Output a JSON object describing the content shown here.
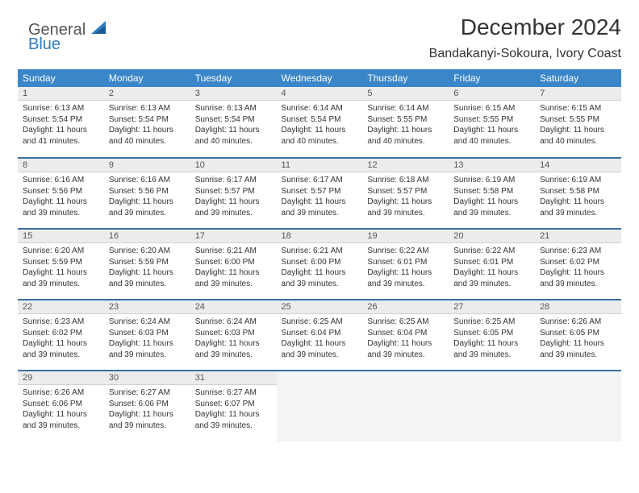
{
  "logo": {
    "text1": "General",
    "text2": "Blue",
    "icon_color": "#2f7cc0"
  },
  "header": {
    "month_title": "December 2024",
    "location": "Bandakanyi-Sokoura, Ivory Coast"
  },
  "style": {
    "header_bg": "#3a86c8",
    "header_fg": "#ffffff",
    "row_divider": "#3a6ea5",
    "daynum_bg": "#ececec",
    "text_color": "#333333",
    "empty_bg": "#f4f4f4"
  },
  "calendar": {
    "day_headers": [
      "Sunday",
      "Monday",
      "Tuesday",
      "Wednesday",
      "Thursday",
      "Friday",
      "Saturday"
    ],
    "weeks": [
      [
        {
          "day": "1",
          "sunrise": "Sunrise: 6:13 AM",
          "sunset": "Sunset: 5:54 PM",
          "daylight": "Daylight: 11 hours and 41 minutes."
        },
        {
          "day": "2",
          "sunrise": "Sunrise: 6:13 AM",
          "sunset": "Sunset: 5:54 PM",
          "daylight": "Daylight: 11 hours and 40 minutes."
        },
        {
          "day": "3",
          "sunrise": "Sunrise: 6:13 AM",
          "sunset": "Sunset: 5:54 PM",
          "daylight": "Daylight: 11 hours and 40 minutes."
        },
        {
          "day": "4",
          "sunrise": "Sunrise: 6:14 AM",
          "sunset": "Sunset: 5:54 PM",
          "daylight": "Daylight: 11 hours and 40 minutes."
        },
        {
          "day": "5",
          "sunrise": "Sunrise: 6:14 AM",
          "sunset": "Sunset: 5:55 PM",
          "daylight": "Daylight: 11 hours and 40 minutes."
        },
        {
          "day": "6",
          "sunrise": "Sunrise: 6:15 AM",
          "sunset": "Sunset: 5:55 PM",
          "daylight": "Daylight: 11 hours and 40 minutes."
        },
        {
          "day": "7",
          "sunrise": "Sunrise: 6:15 AM",
          "sunset": "Sunset: 5:55 PM",
          "daylight": "Daylight: 11 hours and 40 minutes."
        }
      ],
      [
        {
          "day": "8",
          "sunrise": "Sunrise: 6:16 AM",
          "sunset": "Sunset: 5:56 PM",
          "daylight": "Daylight: 11 hours and 39 minutes."
        },
        {
          "day": "9",
          "sunrise": "Sunrise: 6:16 AM",
          "sunset": "Sunset: 5:56 PM",
          "daylight": "Daylight: 11 hours and 39 minutes."
        },
        {
          "day": "10",
          "sunrise": "Sunrise: 6:17 AM",
          "sunset": "Sunset: 5:57 PM",
          "daylight": "Daylight: 11 hours and 39 minutes."
        },
        {
          "day": "11",
          "sunrise": "Sunrise: 6:17 AM",
          "sunset": "Sunset: 5:57 PM",
          "daylight": "Daylight: 11 hours and 39 minutes."
        },
        {
          "day": "12",
          "sunrise": "Sunrise: 6:18 AM",
          "sunset": "Sunset: 5:57 PM",
          "daylight": "Daylight: 11 hours and 39 minutes."
        },
        {
          "day": "13",
          "sunrise": "Sunrise: 6:19 AM",
          "sunset": "Sunset: 5:58 PM",
          "daylight": "Daylight: 11 hours and 39 minutes."
        },
        {
          "day": "14",
          "sunrise": "Sunrise: 6:19 AM",
          "sunset": "Sunset: 5:58 PM",
          "daylight": "Daylight: 11 hours and 39 minutes."
        }
      ],
      [
        {
          "day": "15",
          "sunrise": "Sunrise: 6:20 AM",
          "sunset": "Sunset: 5:59 PM",
          "daylight": "Daylight: 11 hours and 39 minutes."
        },
        {
          "day": "16",
          "sunrise": "Sunrise: 6:20 AM",
          "sunset": "Sunset: 5:59 PM",
          "daylight": "Daylight: 11 hours and 39 minutes."
        },
        {
          "day": "17",
          "sunrise": "Sunrise: 6:21 AM",
          "sunset": "Sunset: 6:00 PM",
          "daylight": "Daylight: 11 hours and 39 minutes."
        },
        {
          "day": "18",
          "sunrise": "Sunrise: 6:21 AM",
          "sunset": "Sunset: 6:00 PM",
          "daylight": "Daylight: 11 hours and 39 minutes."
        },
        {
          "day": "19",
          "sunrise": "Sunrise: 6:22 AM",
          "sunset": "Sunset: 6:01 PM",
          "daylight": "Daylight: 11 hours and 39 minutes."
        },
        {
          "day": "20",
          "sunrise": "Sunrise: 6:22 AM",
          "sunset": "Sunset: 6:01 PM",
          "daylight": "Daylight: 11 hours and 39 minutes."
        },
        {
          "day": "21",
          "sunrise": "Sunrise: 6:23 AM",
          "sunset": "Sunset: 6:02 PM",
          "daylight": "Daylight: 11 hours and 39 minutes."
        }
      ],
      [
        {
          "day": "22",
          "sunrise": "Sunrise: 6:23 AM",
          "sunset": "Sunset: 6:02 PM",
          "daylight": "Daylight: 11 hours and 39 minutes."
        },
        {
          "day": "23",
          "sunrise": "Sunrise: 6:24 AM",
          "sunset": "Sunset: 6:03 PM",
          "daylight": "Daylight: 11 hours and 39 minutes."
        },
        {
          "day": "24",
          "sunrise": "Sunrise: 6:24 AM",
          "sunset": "Sunset: 6:03 PM",
          "daylight": "Daylight: 11 hours and 39 minutes."
        },
        {
          "day": "25",
          "sunrise": "Sunrise: 6:25 AM",
          "sunset": "Sunset: 6:04 PM",
          "daylight": "Daylight: 11 hours and 39 minutes."
        },
        {
          "day": "26",
          "sunrise": "Sunrise: 6:25 AM",
          "sunset": "Sunset: 6:04 PM",
          "daylight": "Daylight: 11 hours and 39 minutes."
        },
        {
          "day": "27",
          "sunrise": "Sunrise: 6:25 AM",
          "sunset": "Sunset: 6:05 PM",
          "daylight": "Daylight: 11 hours and 39 minutes."
        },
        {
          "day": "28",
          "sunrise": "Sunrise: 6:26 AM",
          "sunset": "Sunset: 6:05 PM",
          "daylight": "Daylight: 11 hours and 39 minutes."
        }
      ],
      [
        {
          "day": "29",
          "sunrise": "Sunrise: 6:26 AM",
          "sunset": "Sunset: 6:06 PM",
          "daylight": "Daylight: 11 hours and 39 minutes."
        },
        {
          "day": "30",
          "sunrise": "Sunrise: 6:27 AM",
          "sunset": "Sunset: 6:06 PM",
          "daylight": "Daylight: 11 hours and 39 minutes."
        },
        {
          "day": "31",
          "sunrise": "Sunrise: 6:27 AM",
          "sunset": "Sunset: 6:07 PM",
          "daylight": "Daylight: 11 hours and 39 minutes."
        },
        {
          "empty": true
        },
        {
          "empty": true
        },
        {
          "empty": true
        },
        {
          "empty": true
        }
      ]
    ]
  }
}
